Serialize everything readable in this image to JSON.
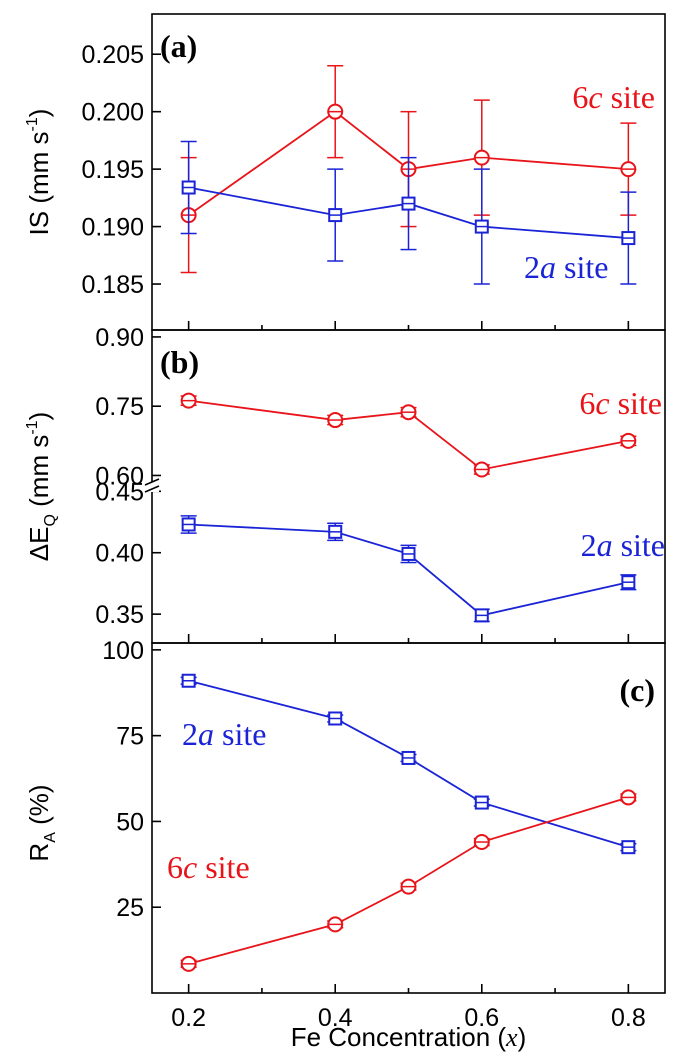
{
  "chart_data": [
    {
      "type": "line",
      "panel_label": "(a)",
      "ylabel_main": "IS (mm s",
      "ylabel_sup": "-1",
      "ylabel_end": ")",
      "ylim": [
        0.181,
        0.2085
      ],
      "yticks": [
        "0.185",
        "0.190",
        "0.195",
        "0.200",
        "0.205"
      ],
      "xlim": [
        0.15,
        0.85
      ],
      "series": [
        {
          "name": "6c site",
          "site_num": "6",
          "site_it": "c",
          "site_txt": " site",
          "color": "#e8141a",
          "marker": "circle",
          "x": [
            0.2,
            0.4,
            0.5,
            0.6,
            0.8
          ],
          "y": [
            0.191,
            0.2,
            0.195,
            0.196,
            0.195
          ],
          "err": [
            0.005,
            0.004,
            0.005,
            0.005,
            0.004
          ]
        },
        {
          "name": "2a site",
          "site_num": "2",
          "site_it": "a",
          "site_txt": " site",
          "color": "#1a24d6",
          "marker": "square",
          "x": [
            0.2,
            0.4,
            0.5,
            0.6,
            0.8
          ],
          "y": [
            0.1934,
            0.191,
            0.192,
            0.19,
            0.189
          ],
          "err": [
            0.004,
            0.004,
            0.004,
            0.005,
            0.004
          ]
        }
      ]
    },
    {
      "type": "line",
      "panel_label": "(b)",
      "ylabel_main": "ΔE",
      "ylabel_sub": "Q",
      "ylabel_end": " (mm s",
      "ylabel_sup": "-1",
      "ylabel_close": ")",
      "broken_axis": true,
      "upper_ylim": [
        0.575,
        0.915
      ],
      "upper_yticks": [
        "0.60",
        "0.75",
        "0.90"
      ],
      "lower_ylim": [
        0.3265,
        0.4535
      ],
      "lower_yticks": [
        "0.35",
        "0.40",
        "0.45"
      ],
      "xlim": [
        0.15,
        0.85
      ],
      "series": [
        {
          "name": "6c site",
          "site_num": "6",
          "site_it": "c",
          "site_txt": " site",
          "color": "#e8141a",
          "marker": "circle",
          "x": [
            0.2,
            0.4,
            0.5,
            0.6,
            0.8
          ],
          "y": [
            0.762,
            0.72,
            0.737,
            0.613,
            0.675
          ],
          "err": [
            0.01,
            0.01,
            0.01,
            0.01,
            0.01
          ]
        },
        {
          "name": "2a site",
          "site_num": "2",
          "site_it": "a",
          "site_txt": " site",
          "color": "#1a24d6",
          "marker": "square",
          "x": [
            0.2,
            0.4,
            0.5,
            0.6,
            0.8
          ],
          "y": [
            0.423,
            0.417,
            0.399,
            0.349,
            0.376
          ],
          "err": [
            0.007,
            0.007,
            0.007,
            0.005,
            0.006
          ]
        }
      ]
    },
    {
      "type": "line",
      "panel_label": "(c)",
      "ylabel_main": "R",
      "ylabel_sub": "A",
      "ylabel_end": " (%)",
      "ylim": [
        0,
        102
      ],
      "yticks": [
        "25",
        "50",
        "75",
        "100"
      ],
      "xlim": [
        0.15,
        0.85
      ],
      "xticks": [
        "0.2",
        "0.4",
        "0.6",
        "0.8"
      ],
      "xlabel_main": "Fe Concentration (",
      "xlabel_it": "x",
      "xlabel_end": ")",
      "series": [
        {
          "name": "2a site",
          "site_num": "2",
          "site_it": "a",
          "site_txt": " site",
          "color": "#1a24d6",
          "marker": "square",
          "x": [
            0.2,
            0.4,
            0.5,
            0.6,
            0.8
          ],
          "y": [
            91,
            80,
            68.5,
            55.5,
            42.5
          ],
          "err": [
            1,
            1,
            1,
            1,
            1
          ]
        },
        {
          "name": "6c site",
          "site_num": "6",
          "site_it": "c",
          "site_txt": " site",
          "color": "#e8141a",
          "marker": "circle",
          "x": [
            0.2,
            0.4,
            0.5,
            0.6,
            0.8
          ],
          "y": [
            8.5,
            20,
            31,
            44,
            57
          ],
          "err": [
            1,
            1,
            1,
            1,
            1
          ]
        }
      ]
    }
  ]
}
